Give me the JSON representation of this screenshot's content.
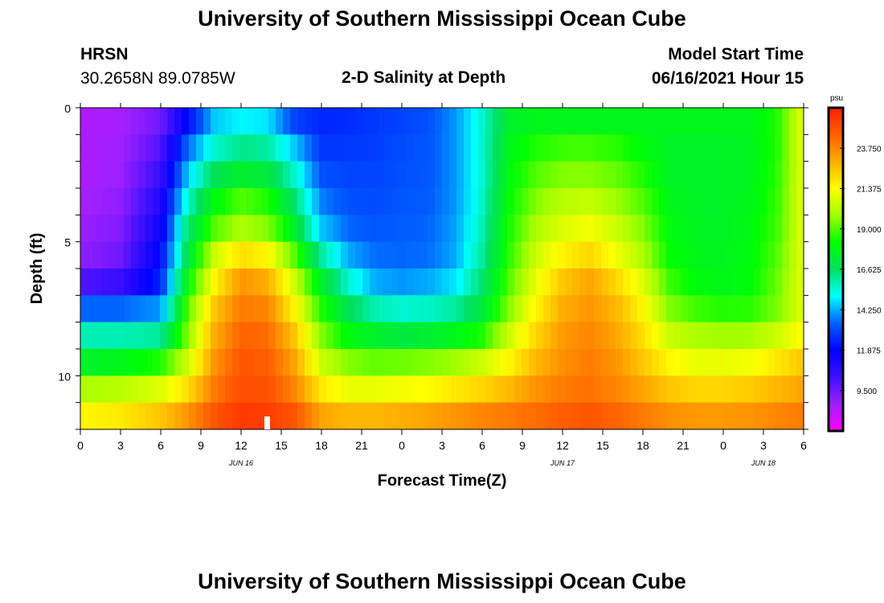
{
  "header": {
    "title": "University of Southern Mississippi Ocean Cube",
    "station": "HRSN",
    "coords": "30.2658N  89.0785W",
    "plot_title": "2-D Salinity at Depth",
    "model_label": "Model Start Time",
    "model_time": "06/16/2021 Hour 15",
    "footer_title": "University of Southern Mississippi Ocean Cube"
  },
  "chart_data": {
    "type": "heatmap",
    "title": "2-D Salinity at Depth",
    "xlabel": "Forecast Time(Z)",
    "ylabel": "Depth (ft)",
    "x_tick_labels": [
      "0",
      "3",
      "6",
      "9",
      "12",
      "15",
      "18",
      "21",
      "0",
      "3",
      "6",
      "9",
      "12",
      "15",
      "18",
      "21",
      "0",
      "3",
      "6"
    ],
    "x_range_hours": [
      0,
      54
    ],
    "date_labels": [
      {
        "label": "JUN 16",
        "hour": 12
      },
      {
        "label": "JUN 17",
        "hour": 36
      },
      {
        "label": "JUN 18",
        "hour": 51
      }
    ],
    "y_tick_labels": [
      "0",
      "5",
      "10"
    ],
    "y_tick_values": [
      0,
      5,
      10
    ],
    "y_range_ft": [
      0,
      12
    ],
    "depth_levels_ft": [
      0.5,
      1.5,
      2.5,
      3.5,
      4.5,
      5.5,
      6.5,
      7.5,
      8.5,
      9.5,
      10.5,
      11.5
    ],
    "units": "psu",
    "colorbar_labels": [
      "23.750",
      "21.375",
      "19.000",
      "16.625",
      "14.250",
      "11.875",
      "9.500"
    ],
    "colorbar_values": [
      23.75,
      21.375,
      19.0,
      16.625,
      14.25,
      11.875,
      9.5
    ],
    "colorbar_range": [
      7.125,
      26.125
    ],
    "colorbar_colors": [
      "#ff00ff",
      "#a020ff",
      "#4010ff",
      "#0000ff",
      "#0060ff",
      "#00ffff",
      "#00e060",
      "#00ff00",
      "#a0ff00",
      "#ffff00",
      "#ffb000",
      "#ff6000",
      "#ff2000"
    ],
    "salinity_profile_hours": [
      0,
      3,
      6,
      8,
      10,
      12,
      14,
      16,
      18,
      20,
      22,
      24,
      26,
      28,
      30,
      32,
      34,
      36,
      38,
      40,
      42,
      44,
      46,
      48,
      50,
      52,
      54
    ],
    "salinity_rows_psu": [
      [
        8.5,
        8.6,
        9.5,
        12.0,
        14.5,
        15.0,
        14.8,
        13.0,
        12.5,
        12.6,
        12.8,
        13.0,
        13.2,
        14.0,
        15.5,
        17.5,
        17.8,
        17.8,
        17.8,
        17.8,
        17.8,
        17.8,
        17.8,
        17.8,
        17.8,
        18.5,
        21.0
      ],
      [
        8.5,
        8.7,
        10.0,
        13.5,
        15.5,
        16.2,
        16.0,
        14.5,
        12.8,
        12.8,
        12.9,
        13.1,
        13.3,
        14.0,
        15.5,
        17.8,
        18.5,
        18.8,
        18.8,
        18.6,
        18.0,
        17.6,
        17.6,
        17.6,
        17.7,
        18.5,
        21.0
      ],
      [
        8.5,
        8.8,
        10.5,
        14.5,
        16.8,
        17.5,
        17.2,
        15.5,
        13.2,
        13.0,
        13.0,
        13.2,
        13.3,
        14.0,
        15.5,
        18.0,
        19.0,
        19.5,
        19.5,
        19.2,
        18.5,
        17.6,
        17.6,
        17.6,
        17.7,
        18.6,
        21.0
      ],
      [
        8.6,
        9.0,
        11.0,
        15.5,
        18.0,
        19.0,
        18.5,
        16.5,
        13.8,
        13.2,
        13.1,
        13.3,
        13.4,
        14.0,
        15.6,
        18.2,
        19.5,
        20.2,
        20.4,
        19.8,
        19.0,
        17.8,
        17.6,
        17.6,
        17.8,
        18.7,
        21.0
      ],
      [
        8.8,
        9.2,
        11.5,
        16.5,
        19.0,
        20.0,
        19.5,
        17.5,
        14.5,
        13.5,
        13.3,
        13.4,
        13.5,
        14.1,
        15.8,
        18.4,
        20.0,
        20.8,
        21.2,
        20.5,
        19.5,
        18.0,
        17.7,
        17.6,
        17.9,
        18.8,
        21.0
      ],
      [
        9.0,
        9.5,
        12.0,
        17.0,
        20.5,
        22.0,
        21.5,
        19.0,
        16.0,
        14.2,
        13.6,
        13.5,
        13.6,
        14.2,
        16.0,
        18.6,
        20.5,
        21.6,
        22.2,
        21.2,
        20.0,
        18.2,
        17.8,
        17.7,
        18.0,
        19.0,
        21.0
      ],
      [
        10.0,
        10.5,
        12.5,
        18.0,
        21.5,
        23.5,
        23.0,
        20.5,
        17.5,
        15.5,
        14.2,
        14.0,
        14.2,
        14.8,
        16.5,
        19.0,
        21.0,
        22.5,
        23.2,
        22.2,
        20.8,
        18.8,
        18.0,
        17.8,
        18.1,
        19.2,
        21.0
      ],
      [
        13.5,
        13.5,
        14.0,
        19.0,
        22.5,
        24.0,
        23.8,
        21.5,
        18.5,
        16.8,
        15.8,
        15.5,
        15.6,
        16.0,
        17.2,
        19.5,
        21.6,
        23.0,
        23.5,
        22.8,
        21.5,
        19.5,
        18.8,
        18.5,
        18.6,
        19.4,
        21.0
      ],
      [
        15.8,
        15.8,
        16.0,
        19.5,
        23.0,
        24.5,
        24.3,
        22.5,
        19.5,
        18.0,
        17.5,
        17.2,
        17.4,
        17.8,
        18.5,
        20.5,
        22.2,
        23.4,
        23.8,
        23.2,
        22.0,
        20.5,
        20.0,
        19.8,
        19.9,
        20.5,
        21.5
      ],
      [
        17.5,
        17.8,
        18.5,
        20.5,
        23.5,
        24.8,
        24.6,
        23.2,
        20.5,
        19.5,
        19.2,
        19.3,
        19.5,
        19.8,
        20.5,
        21.5,
        22.8,
        23.6,
        24.0,
        23.5,
        22.5,
        21.5,
        21.0,
        21.0,
        21.2,
        21.8,
        22.5
      ],
      [
        20.0,
        20.2,
        20.8,
        22.0,
        24.0,
        25.0,
        24.9,
        23.8,
        21.8,
        21.0,
        21.0,
        21.2,
        21.4,
        21.8,
        22.2,
        22.8,
        23.5,
        24.0,
        24.2,
        23.8,
        23.2,
        22.5,
        22.2,
        22.2,
        22.4,
        22.8,
        23.2
      ],
      [
        21.5,
        21.8,
        22.5,
        23.5,
        24.8,
        25.5,
        25.4,
        24.8,
        23.2,
        22.8,
        22.8,
        23.0,
        23.2,
        23.5,
        23.8,
        24.0,
        24.3,
        24.6,
        24.8,
        24.5,
        24.0,
        23.6,
        23.4,
        23.4,
        23.5,
        23.8,
        24.0
      ]
    ]
  }
}
